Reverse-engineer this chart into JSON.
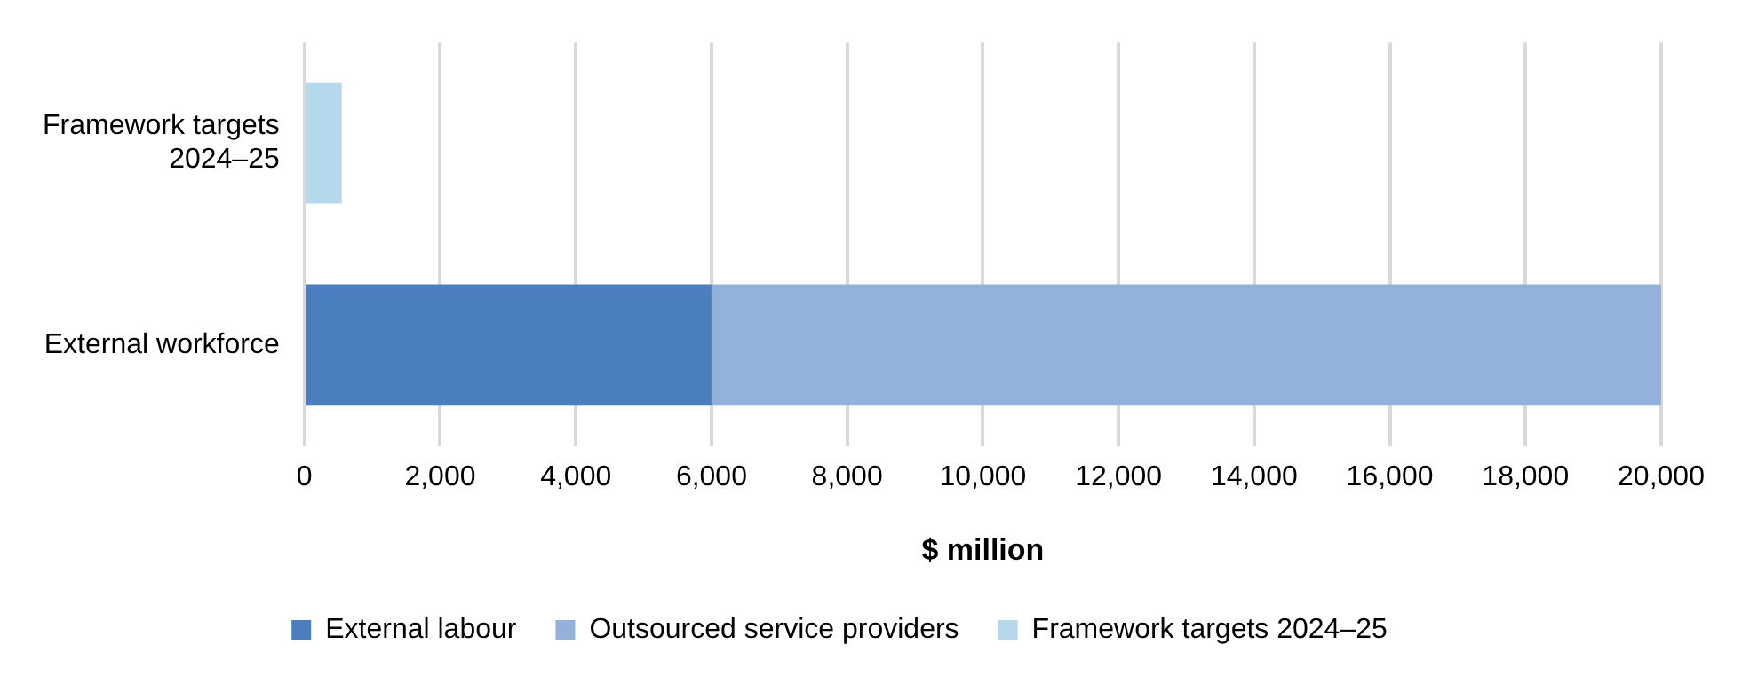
{
  "chart_data": {
    "type": "bar",
    "orientation": "horizontal",
    "stacked": true,
    "categories": [
      "Framework targets 2024–25",
      "External workforce"
    ],
    "series": [
      {
        "name": "External labour",
        "color": "#4a7ebf",
        "values": [
          null,
          6000
        ]
      },
      {
        "name": "Outsourced service providers",
        "color": "#93b2da",
        "values": [
          null,
          14000
        ]
      },
      {
        "name": "Framework targets 2024–25",
        "color": "#b5d8ec",
        "values": [
          550,
          null
        ]
      }
    ],
    "xlabel": "$ million",
    "xlim": [
      0,
      20000
    ],
    "xticks": [
      0,
      {
        "value": 2000,
        "label": "2,000"
      },
      {
        "value": 4000,
        "label": "4,000"
      },
      {
        "value": 6000,
        "label": "6,000"
      },
      {
        "value": 8000,
        "label": "8,000"
      },
      {
        "value": 10000,
        "label": "10,000"
      },
      {
        "value": 12000,
        "label": "12,000"
      },
      {
        "value": 14000,
        "label": "14,000"
      },
      {
        "value": 16000,
        "label": "16,000"
      },
      {
        "value": 18000,
        "label": "18,000"
      },
      {
        "value": 20000,
        "label": "20,000"
      }
    ],
    "grid": "x",
    "legend": "bottom"
  }
}
